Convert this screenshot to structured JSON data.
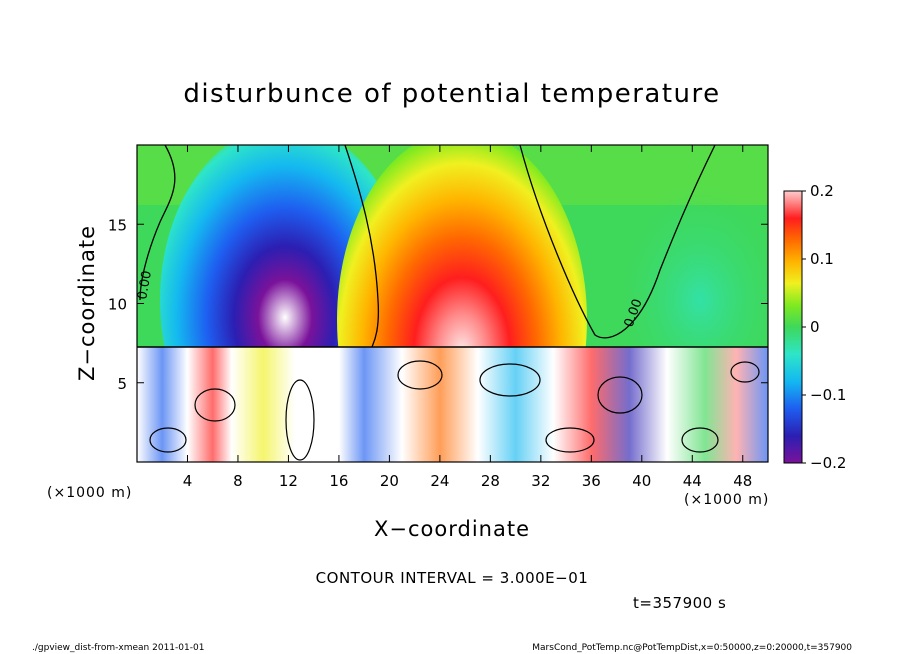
{
  "chart_data": {
    "type": "heatmap",
    "title": "disturbunce of potential temperature",
    "xlabel": "X−coordinate",
    "ylabel": "Z−coordinate",
    "x_unit_left": "(×1000 m)",
    "x_unit_right": "(×1000 m)",
    "xlim": [
      0,
      50
    ],
    "ylim": [
      0,
      20
    ],
    "x_ticks": [
      4,
      8,
      12,
      16,
      20,
      24,
      28,
      32,
      36,
      40,
      44,
      48
    ],
    "y_ticks": [
      5,
      10,
      15
    ],
    "contour_label": "0.00",
    "colorbar": {
      "range": [
        -0.2,
        0.2
      ],
      "tick_values": [
        -0.2,
        -0.1,
        0,
        0.1,
        0.2
      ],
      "tick_labels": [
        "−0.2",
        "−0.1",
        "0",
        "0.1",
        "0.2"
      ]
    },
    "features": [
      {
        "kind": "cold-anomaly",
        "x": 12,
        "z": 12,
        "value": -0.2
      },
      {
        "kind": "warm-anomaly",
        "x": 26,
        "z": 11,
        "value": 0.2
      },
      {
        "kind": "cold-anomaly-weak",
        "x": 46,
        "z": 14,
        "value": -0.03
      }
    ],
    "contour_interval": "CONTOUR INTERVAL = 3.000E−01",
    "time": "t=357900 s"
  },
  "footer": {
    "left": "./gpview_dist-from-xmean  2011-01-01",
    "right": "MarsCond_PotTemp.nc@PotTempDist,x=0:50000,z=0:20000,t=357900"
  },
  "colors": {
    "scale": [
      "#7a129a",
      "#2b1fb2",
      "#1e5ef0",
      "#14b8f0",
      "#2ee5c8",
      "#3ed85a",
      "#7fea20",
      "#f0f020",
      "#ffb400",
      "#ff6a00",
      "#ff1e1e",
      "#ff8a8a",
      "#ffcccc"
    ]
  }
}
